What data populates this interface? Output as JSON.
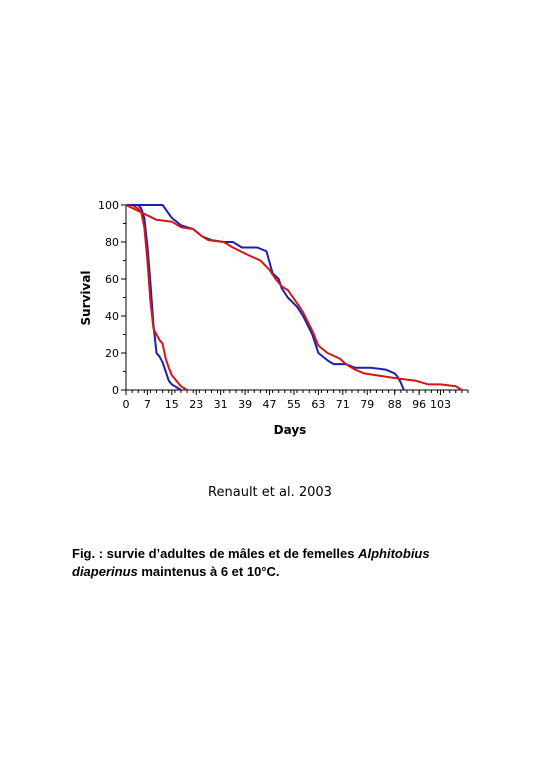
{
  "chart_data": {
    "type": "line",
    "ylabel": "Survival",
    "xlabel": "Days",
    "ylim": [
      0,
      100
    ],
    "yticks": [
      0,
      20,
      40,
      60,
      80,
      100
    ],
    "xticks": [
      "0",
      "7",
      "15",
      "23",
      "31",
      "39",
      "47",
      "55",
      "63",
      "71",
      "79",
      "88",
      "96",
      "103"
    ],
    "series": [
      {
        "color": "#1f1fb0",
        "points": [
          [
            0,
            100
          ],
          [
            2,
            100
          ],
          [
            4,
            100
          ],
          [
            5,
            98
          ],
          [
            6,
            93
          ],
          [
            7,
            78
          ],
          [
            8,
            58
          ],
          [
            9,
            35
          ],
          [
            10,
            20
          ],
          [
            11,
            18
          ],
          [
            12,
            15
          ],
          [
            13,
            10
          ],
          [
            14,
            5
          ],
          [
            15,
            3
          ],
          [
            16,
            2
          ],
          [
            17,
            1
          ],
          [
            18,
            0
          ]
        ]
      },
      {
        "color": "#d01818",
        "points": [
          [
            0,
            100
          ],
          [
            2,
            100
          ],
          [
            4,
            98
          ],
          [
            5,
            96
          ],
          [
            6,
            88
          ],
          [
            7,
            70
          ],
          [
            8,
            48
          ],
          [
            9,
            33
          ],
          [
            10,
            30
          ],
          [
            11,
            27
          ],
          [
            12,
            25
          ],
          [
            13,
            17
          ],
          [
            14,
            12
          ],
          [
            15,
            8
          ],
          [
            16,
            6
          ],
          [
            17,
            4
          ],
          [
            18,
            2
          ],
          [
            19,
            1
          ],
          [
            20,
            0
          ]
        ]
      },
      {
        "color": "#1f1fb0",
        "points": [
          [
            0,
            100
          ],
          [
            12,
            100
          ],
          [
            15,
            93
          ],
          [
            18,
            89
          ],
          [
            22,
            87
          ],
          [
            25,
            83
          ],
          [
            28,
            81
          ],
          [
            32,
            80
          ],
          [
            35,
            80
          ],
          [
            38,
            77
          ],
          [
            43,
            77
          ],
          [
            46,
            75
          ],
          [
            48,
            63
          ],
          [
            50,
            60
          ],
          [
            51,
            55
          ],
          [
            53,
            50
          ],
          [
            56,
            45
          ],
          [
            58,
            40
          ],
          [
            61,
            30
          ],
          [
            63,
            20
          ],
          [
            66,
            16
          ],
          [
            68,
            14
          ],
          [
            72,
            14
          ],
          [
            75,
            12
          ],
          [
            80,
            12
          ],
          [
            85,
            11
          ],
          [
            88,
            9
          ],
          [
            89,
            7
          ],
          [
            90,
            4
          ],
          [
            91,
            0
          ]
        ]
      },
      {
        "color": "#d01818",
        "points": [
          [
            0,
            100
          ],
          [
            5,
            96
          ],
          [
            10,
            92
          ],
          [
            15,
            91
          ],
          [
            18,
            88
          ],
          [
            22,
            87
          ],
          [
            25,
            83
          ],
          [
            27,
            81
          ],
          [
            32,
            80
          ],
          [
            35,
            77
          ],
          [
            40,
            73
          ],
          [
            44,
            70
          ],
          [
            47,
            65
          ],
          [
            49,
            60
          ],
          [
            51,
            56
          ],
          [
            53,
            54
          ],
          [
            56,
            47
          ],
          [
            58,
            42
          ],
          [
            61,
            32
          ],
          [
            63,
            24
          ],
          [
            66,
            20
          ],
          [
            70,
            17
          ],
          [
            72,
            14
          ],
          [
            75,
            11
          ],
          [
            78,
            9
          ],
          [
            82,
            8
          ],
          [
            86,
            7
          ],
          [
            90,
            6
          ],
          [
            95,
            5
          ],
          [
            99,
            3
          ],
          [
            103,
            3
          ],
          [
            108,
            2
          ],
          [
            110,
            0
          ]
        ]
      }
    ]
  },
  "credit": "Renault et al. 2003",
  "caption": {
    "prefix": "Fig. : survie d’adultes de mâles et de femelles ",
    "species_genus": "Alphitobius",
    "species_epithet": "diaperinus",
    "suffix": "  maintenus à 6 et 10°C."
  }
}
